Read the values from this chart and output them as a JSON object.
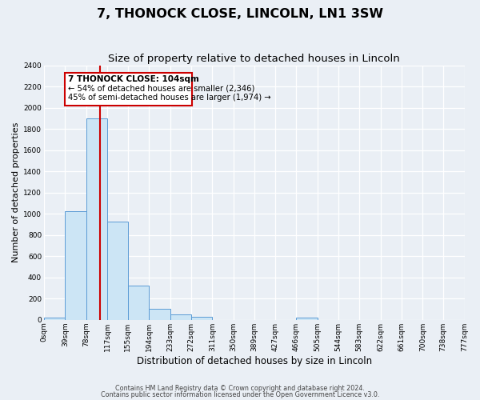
{
  "title": "7, THONOCK CLOSE, LINCOLN, LN1 3SW",
  "subtitle": "Size of property relative to detached houses in Lincoln",
  "xlabel": "Distribution of detached houses by size in Lincoln",
  "ylabel": "Number of detached properties",
  "footnote1": "Contains HM Land Registry data © Crown copyright and database right 2024.",
  "footnote2": "Contains public sector information licensed under the Open Government Licence v3.0.",
  "bin_edges": [
    0,
    39,
    78,
    117,
    155,
    194,
    233,
    272,
    311,
    350,
    389,
    427,
    466,
    505,
    544,
    583,
    622,
    661,
    700,
    738,
    777
  ],
  "bin_labels": [
    "0sqm",
    "39sqm",
    "78sqm",
    "117sqm",
    "155sqm",
    "194sqm",
    "233sqm",
    "272sqm",
    "311sqm",
    "350sqm",
    "389sqm",
    "427sqm",
    "466sqm",
    "505sqm",
    "544sqm",
    "583sqm",
    "622sqm",
    "661sqm",
    "700sqm",
    "738sqm",
    "777sqm"
  ],
  "bar_heights": [
    20,
    1025,
    1900,
    930,
    320,
    105,
    50,
    25,
    0,
    0,
    0,
    0,
    20,
    0,
    0,
    0,
    0,
    0,
    0,
    0
  ],
  "bar_color": "#cce5f5",
  "bar_edge_color": "#5b9bd5",
  "vline_x": 104,
  "vline_color": "#cc0000",
  "ann_title": "7 THONOCK CLOSE: 104sqm",
  "ann_line1": "← 54% of detached houses are smaller (2,346)",
  "ann_line2": "45% of semi-detached houses are larger (1,974) →",
  "ann_box_edge": "#cc0000",
  "ann_box_face": "#ffffff",
  "ylim_max": 2400,
  "yticks": [
    0,
    200,
    400,
    600,
    800,
    1000,
    1200,
    1400,
    1600,
    1800,
    2000,
    2200,
    2400
  ],
  "bg_color": "#eaeff5",
  "grid_color": "#ffffff",
  "title_fontsize": 11.5,
  "subtitle_fontsize": 9.5,
  "ylabel_fontsize": 8,
  "xlabel_fontsize": 8.5,
  "tick_fontsize": 6.5,
  "footnote_fontsize": 5.8
}
